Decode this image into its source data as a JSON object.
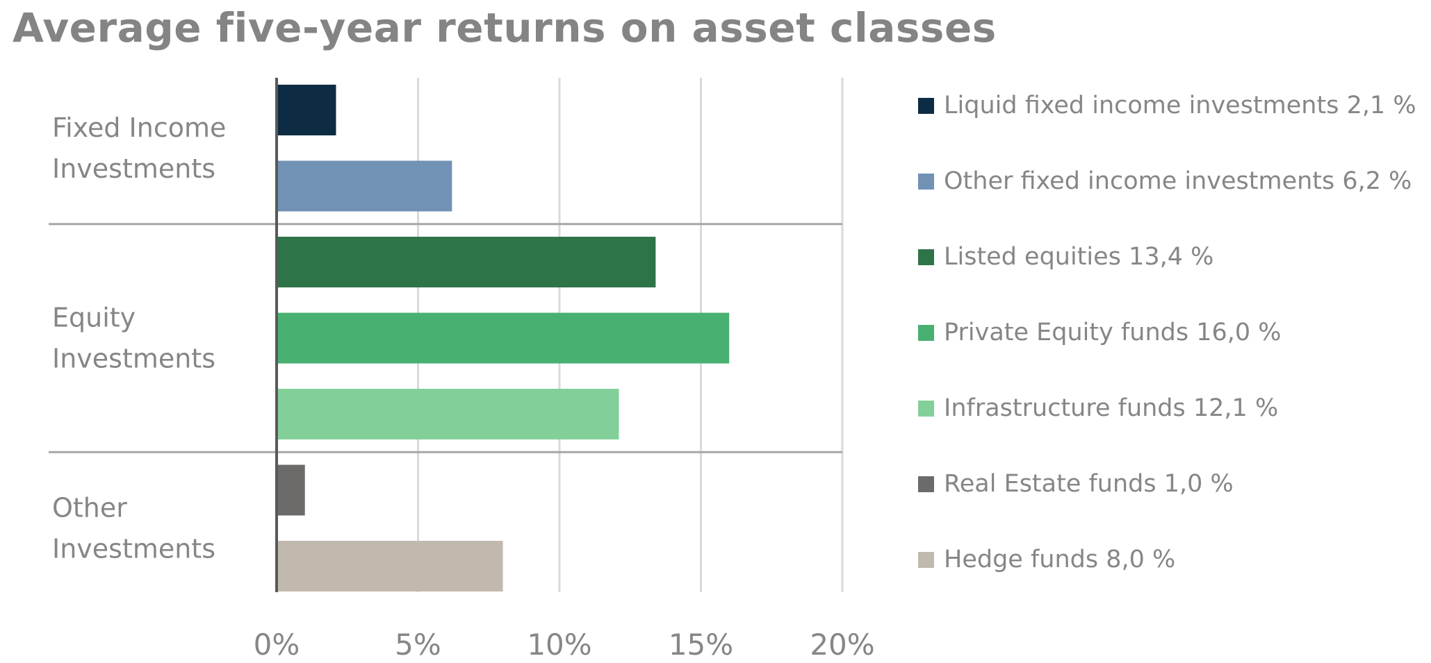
{
  "chart_data": {
    "type": "bar",
    "orientation": "horizontal",
    "title": "Average five-year returns on asset classes",
    "xlim": [
      0,
      20
    ],
    "x_ticks": [
      0,
      5,
      10,
      15,
      20
    ],
    "x_tick_labels": [
      "0%",
      "5%",
      "10%",
      "15%",
      "20%"
    ],
    "grid": true,
    "legend_position": "right",
    "groups": [
      {
        "label_lines": [
          "Fixed Income",
          "Investments"
        ],
        "series_indices": [
          0,
          1
        ]
      },
      {
        "label_lines": [
          "Equity",
          "Investments"
        ],
        "series_indices": [
          2,
          3,
          4
        ]
      },
      {
        "label_lines": [
          "Other",
          "Investments"
        ],
        "series_indices": [
          5,
          6
        ]
      }
    ],
    "series": [
      {
        "name": "Liquid fixed income investments",
        "value": 2.1,
        "color": "#0d2b42",
        "legend_label": "Liquid fixed income investments 2,1 %"
      },
      {
        "name": "Other fixed income investments",
        "value": 6.2,
        "color": "#7191b5",
        "legend_label": "Other fixed income investments 6,2 %"
      },
      {
        "name": "Listed equities",
        "value": 13.4,
        "color": "#2f7349",
        "legend_label": "Listed equities 13,4 %"
      },
      {
        "name": "Private Equity funds",
        "value": 16.0,
        "color": "#48b071",
        "legend_label": "Private Equity funds 16,0 %"
      },
      {
        "name": "Infrastructure funds",
        "value": 12.1,
        "color": "#83cf99",
        "legend_label": "Infrastructure funds 12,1 %"
      },
      {
        "name": "Real Estate funds",
        "value": 1.0,
        "color": "#6d6a6a",
        "legend_label": "Real Estate funds 1,0 %"
      },
      {
        "name": "Hedge funds",
        "value": 8.0,
        "color": "#c2b9ae",
        "legend_label": "Hedge funds 8,0 %"
      }
    ]
  }
}
